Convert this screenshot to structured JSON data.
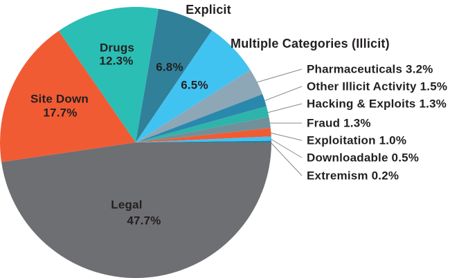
{
  "chart_data": {
    "type": "pie",
    "title": "",
    "unit": "%",
    "direction": "clockwise",
    "start_angle_deg": 0,
    "background": "#FFFFFF",
    "text_color": "#231F20",
    "leader_line_color": "#87888A",
    "slices": [
      {
        "label": "Legal",
        "value": 47.7,
        "pct_text": "47.7%",
        "color": "#6E6F72"
      },
      {
        "label": "Site Down",
        "value": 17.7,
        "pct_text": "17.7%",
        "color": "#F15B34"
      },
      {
        "label": "Drugs",
        "value": 12.3,
        "pct_text": "12.3%",
        "color": "#2BBEB4"
      },
      {
        "label": "Explicit",
        "value": 6.8,
        "pct_text": "6.8%",
        "color": "#30809A"
      },
      {
        "label": "Multiple Categories (Illicit)",
        "value": 6.5,
        "pct_text": "6.5%",
        "color": "#41C3F2"
      },
      {
        "label": "Pharmaceuticals",
        "value": 3.2,
        "pct_text": "3.2%",
        "color": "#8DA7B7"
      },
      {
        "label": "Other Illicit Activity",
        "value": 1.5,
        "pct_text": "1.5%",
        "color": "#2A88AD"
      },
      {
        "label": "Hacking & Exploits",
        "value": 1.3,
        "pct_text": "1.3%",
        "color": "#2EB4AB"
      },
      {
        "label": "Fraud",
        "value": 1.3,
        "pct_text": "1.3%",
        "color": "#71909A"
      },
      {
        "label": "Exploitation",
        "value": 1.0,
        "pct_text": "1.0%",
        "color": "#F15B34"
      },
      {
        "label": "Downloadable",
        "value": 0.5,
        "pct_text": "0.5%",
        "color": "#41C3F2"
      },
      {
        "label": "Extremism",
        "value": 0.2,
        "pct_text": "0.2%",
        "color": "#2380A8"
      }
    ]
  }
}
